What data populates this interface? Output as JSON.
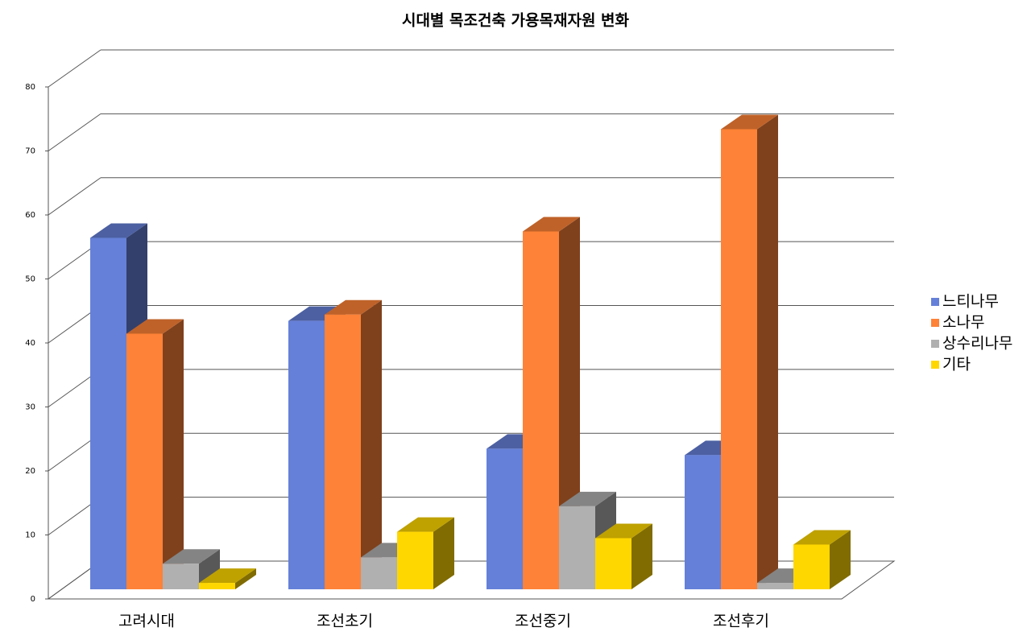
{
  "chart_data": {
    "type": "bar3d",
    "title": "시대별 목조건축 가용목재자원 변화",
    "categories": [
      "고려시대",
      "조선초기",
      "조선중기",
      "조선후기"
    ],
    "series": [
      {
        "name": "느티나무",
        "color": "#6580d8",
        "values": [
          55,
          42,
          22,
          21
        ]
      },
      {
        "name": "소나무",
        "color": "#fe8237",
        "values": [
          40,
          43,
          56,
          72
        ]
      },
      {
        "name": "상수리나무",
        "color": "#b0b0b0",
        "values": [
          4,
          5,
          13,
          1
        ]
      },
      {
        "name": "기타",
        "color": "#ffd700",
        "values": [
          1,
          9,
          8,
          7
        ]
      }
    ],
    "ylim": [
      0,
      80
    ],
    "yticks": [
      0,
      10,
      20,
      30,
      40,
      50,
      60,
      70,
      80
    ],
    "grid": true,
    "legend": "right"
  }
}
